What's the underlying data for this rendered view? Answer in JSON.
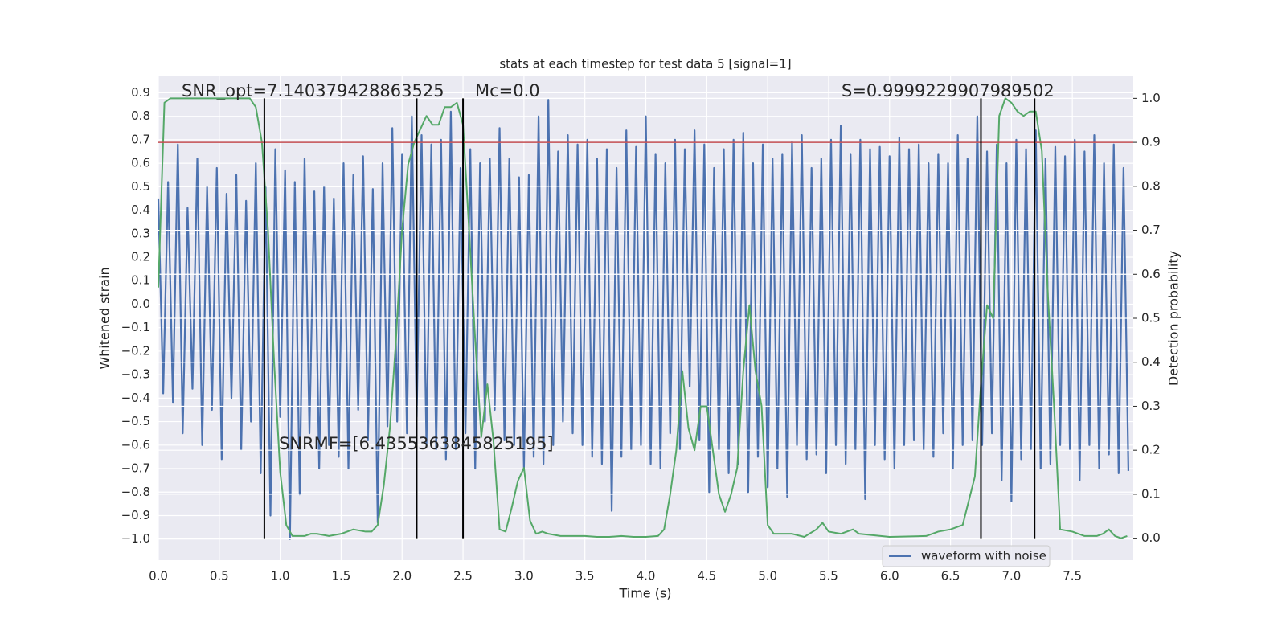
{
  "chart_data": {
    "type": "line",
    "title": "stats at each timestep for test data 5 [signal=1]",
    "x_label": "Time (s)",
    "y_label": "Whitened strain",
    "y2_label": "Detection probability",
    "annotations": [
      "SNR_opt=7.140379428863525",
      "Mc=0.0",
      "S=0.9999229907989502",
      "SNRMF=[6.4355363845825195]"
    ],
    "xlim": [
      0,
      8.0
    ],
    "ylim": [
      -1.09,
      0.97
    ],
    "y2lim": [
      -0.05,
      1.05
    ],
    "xticks": [
      {
        "value": 0,
        "label": "0.0"
      },
      {
        "value": 0.5,
        "label": "0.5"
      },
      {
        "value": 1,
        "label": "1.0"
      },
      {
        "value": 1.5,
        "label": "1.5"
      },
      {
        "value": 2,
        "label": "2.0"
      },
      {
        "value": 2.5,
        "label": "2.5"
      },
      {
        "value": 3,
        "label": "3.0"
      },
      {
        "value": 3.5,
        "label": "3.5"
      },
      {
        "value": 4,
        "label": "4.0"
      },
      {
        "value": 4.5,
        "label": "4.5"
      },
      {
        "value": 5,
        "label": "5.0"
      },
      {
        "value": 5.5,
        "label": "5.5"
      },
      {
        "value": 6,
        "label": "6.0"
      },
      {
        "value": 6.5,
        "label": "6.5"
      },
      {
        "value": 7,
        "label": "7.0"
      },
      {
        "value": 7.5,
        "label": "7.5"
      }
    ],
    "yticks": [
      {
        "value": -1,
        "label": "−1.0"
      },
      {
        "value": -0.9,
        "label": "−0.9"
      },
      {
        "value": -0.8,
        "label": "−0.8"
      },
      {
        "value": -0.7,
        "label": "−0.7"
      },
      {
        "value": -0.6,
        "label": "−0.6"
      },
      {
        "value": -0.5,
        "label": "−0.5"
      },
      {
        "value": -0.4,
        "label": "−0.4"
      },
      {
        "value": -0.3,
        "label": "−0.3"
      },
      {
        "value": -0.2,
        "label": "−0.2"
      },
      {
        "value": -0.1,
        "label": "−0.1"
      },
      {
        "value": 0,
        "label": "0.0"
      },
      {
        "value": 0.1,
        "label": "0.1"
      },
      {
        "value": 0.2,
        "label": "0.2"
      },
      {
        "value": 0.3,
        "label": "0.3"
      },
      {
        "value": 0.4,
        "label": "0.4"
      },
      {
        "value": 0.5,
        "label": "0.5"
      },
      {
        "value": 0.6,
        "label": "0.6"
      },
      {
        "value": 0.7,
        "label": "0.7"
      },
      {
        "value": 0.8,
        "label": "0.8"
      },
      {
        "value": 0.9,
        "label": "0.9"
      }
    ],
    "y2ticks": [
      {
        "value": 0,
        "label": "0.0"
      },
      {
        "value": 0.1,
        "label": "0.1"
      },
      {
        "value": 0.2,
        "label": "0.2"
      },
      {
        "value": 0.3,
        "label": "0.3"
      },
      {
        "value": 0.4,
        "label": "0.4"
      },
      {
        "value": 0.5,
        "label": "0.5"
      },
      {
        "value": 0.6,
        "label": "0.6"
      },
      {
        "value": 0.7,
        "label": "0.7"
      },
      {
        "value": 0.8,
        "label": "0.8"
      },
      {
        "value": 0.9,
        "label": "0.9"
      },
      {
        "value": 1,
        "label": "1.0"
      }
    ],
    "grid": true,
    "legend": "lower right",
    "series": [
      {
        "name": "waveform with noise",
        "color": "#4c72b0",
        "x": [
          0,
          0.04,
          0.08,
          0.12,
          0.16,
          0.2,
          0.24,
          0.28,
          0.32,
          0.36,
          0.4,
          0.44,
          0.48,
          0.52,
          0.56,
          0.6,
          0.64,
          0.68,
          0.72,
          0.76,
          0.8,
          0.84,
          0.88,
          0.92,
          0.96,
          1,
          1.04,
          1.08,
          1.12,
          1.16,
          1.2,
          1.24,
          1.28,
          1.32,
          1.36,
          1.4,
          1.44,
          1.48,
          1.52,
          1.56,
          1.6,
          1.64,
          1.68,
          1.72,
          1.76,
          1.8,
          1.84,
          1.88,
          1.92,
          1.96,
          2,
          2.04,
          2.08,
          2.12,
          2.16,
          2.2,
          2.24,
          2.28,
          2.32,
          2.36,
          2.4,
          2.44,
          2.48,
          2.52,
          2.56,
          2.6,
          2.64,
          2.68,
          2.72,
          2.76,
          2.8,
          2.84,
          2.88,
          2.92,
          2.96,
          3,
          3.04,
          3.08,
          3.12,
          3.16,
          3.2,
          3.24,
          3.28,
          3.32,
          3.36,
          3.4,
          3.44,
          3.48,
          3.52,
          3.56,
          3.6,
          3.64,
          3.68,
          3.72,
          3.76,
          3.8,
          3.84,
          3.88,
          3.92,
          3.96,
          4,
          4.04,
          4.08,
          4.12,
          4.16,
          4.2,
          4.24,
          4.28,
          4.32,
          4.36,
          4.4,
          4.44,
          4.48,
          4.52,
          4.56,
          4.6,
          4.64,
          4.68,
          4.72,
          4.76,
          4.8,
          4.84,
          4.88,
          4.92,
          4.96,
          5,
          5.04,
          5.08,
          5.12,
          5.16,
          5.2,
          5.24,
          5.28,
          5.32,
          5.36,
          5.4,
          5.44,
          5.48,
          5.52,
          5.56,
          5.6,
          5.64,
          5.68,
          5.72,
          5.76,
          5.8,
          5.84,
          5.88,
          5.92,
          5.96,
          6,
          6.04,
          6.08,
          6.12,
          6.16,
          6.2,
          6.24,
          6.28,
          6.32,
          6.36,
          6.4,
          6.44,
          6.48,
          6.52,
          6.56,
          6.6,
          6.64,
          6.68,
          6.72,
          6.76,
          6.8,
          6.84,
          6.88,
          6.92,
          6.96,
          7,
          7.04,
          7.08,
          7.12,
          7.16,
          7.2,
          7.24,
          7.28,
          7.32,
          7.36,
          7.4,
          7.44,
          7.48,
          7.52,
          7.56,
          7.6,
          7.64,
          7.68,
          7.72,
          7.76,
          7.8,
          7.84,
          7.88,
          7.92,
          7.96
        ],
        "values": [
          0.45,
          -0.38,
          0.52,
          -0.42,
          0.68,
          -0.55,
          0.41,
          -0.36,
          0.62,
          -0.6,
          0.5,
          -0.45,
          0.58,
          -0.66,
          0.47,
          -0.4,
          0.55,
          -0.62,
          0.44,
          -0.5,
          0.6,
          -0.72,
          0.5,
          -0.9,
          0.66,
          -0.48,
          0.57,
          -1.0,
          0.52,
          -0.81,
          0.62,
          -0.55,
          0.48,
          -0.7,
          0.5,
          -0.6,
          0.45,
          -0.65,
          0.6,
          -0.7,
          0.55,
          -0.45,
          0.63,
          -0.58,
          0.49,
          -0.93,
          0.6,
          -0.52,
          0.75,
          -0.5,
          0.64,
          -0.55,
          0.8,
          -0.48,
          0.72,
          -0.6,
          0.68,
          -0.62,
          0.7,
          -0.66,
          0.82,
          -0.62,
          0.58,
          -0.55,
          0.66,
          -0.7,
          0.6,
          -0.5,
          0.62,
          -0.45,
          0.75,
          -0.58,
          0.62,
          -0.6,
          0.54,
          -0.7,
          0.55,
          -0.65,
          0.8,
          -0.68,
          0.87,
          -0.6,
          0.65,
          -0.5,
          0.72,
          -0.55,
          0.68,
          -0.6,
          0.7,
          -0.65,
          0.62,
          -0.68,
          0.66,
          -0.88,
          0.58,
          -0.65,
          0.74,
          -0.62,
          0.67,
          -0.6,
          0.8,
          -0.68,
          0.64,
          -0.7,
          0.6,
          -0.55,
          0.7,
          -0.62,
          0.66,
          -0.35,
          0.74,
          -0.58,
          0.68,
          -0.8,
          0.58,
          -0.62,
          0.66,
          -0.72,
          0.7,
          -0.68,
          0.73,
          -0.8,
          0.6,
          -0.65,
          0.68,
          -0.78,
          0.62,
          -0.7,
          0.64,
          -0.82,
          0.69,
          -0.6,
          0.72,
          -0.66,
          0.58,
          -0.64,
          0.62,
          -0.72,
          0.7,
          -0.6,
          0.76,
          -0.68,
          0.64,
          -0.62,
          0.7,
          -0.83,
          0.66,
          -0.6,
          0.67,
          -0.66,
          0.63,
          -0.7,
          0.71,
          -0.6,
          0.66,
          -0.58,
          0.68,
          -0.62,
          0.6,
          -0.65,
          0.64,
          -0.55,
          0.6,
          -0.7,
          0.72,
          -0.6,
          0.62,
          -0.58,
          0.8,
          -0.6,
          0.65,
          -0.55,
          0.68,
          -0.75,
          0.6,
          -0.84,
          0.7,
          -0.66,
          0.66,
          -0.62,
          0.74,
          -0.7,
          0.62,
          -0.68,
          0.67,
          -0.6,
          0.63,
          -0.62,
          0.7,
          -0.75,
          0.65,
          -0.6,
          0.72,
          -0.7,
          0.6,
          -0.64,
          0.68,
          -0.72,
          0.58,
          -0.71
        ]
      },
      {
        "color": "#55a868",
        "axis": "y2",
        "x": [
          0,
          0.05,
          0.1,
          0.2,
          0.3,
          0.4,
          0.5,
          0.6,
          0.7,
          0.75,
          0.8,
          0.85,
          0.9,
          0.95,
          1,
          1.05,
          1.1,
          1.2,
          1.25,
          1.3,
          1.4,
          1.5,
          1.6,
          1.7,
          1.75,
          1.8,
          1.85,
          1.9,
          1.95,
          2,
          2.05,
          2.1,
          2.15,
          2.2,
          2.25,
          2.3,
          2.35,
          2.4,
          2.45,
          2.5,
          2.55,
          2.6,
          2.65,
          2.7,
          2.75,
          2.8,
          2.85,
          2.9,
          2.95,
          3,
          3.05,
          3.1,
          3.15,
          3.2,
          3.3,
          3.4,
          3.5,
          3.6,
          3.7,
          3.8,
          3.9,
          4,
          4.1,
          4.15,
          4.2,
          4.25,
          4.3,
          4.35,
          4.4,
          4.45,
          4.5,
          4.55,
          4.6,
          4.65,
          4.7,
          4.75,
          4.8,
          4.85,
          4.9,
          4.95,
          5,
          5.05,
          5.2,
          5.3,
          5.4,
          5.45,
          5.5,
          5.6,
          5.7,
          5.75,
          6,
          6.3,
          6.4,
          6.5,
          6.6,
          6.7,
          6.75,
          6.8,
          6.85,
          6.9,
          6.95,
          7,
          7.05,
          7.1,
          7.15,
          7.2,
          7.25,
          7.3,
          7.35,
          7.4,
          7.5,
          7.6,
          7.7,
          7.75,
          7.8,
          7.85,
          7.9,
          7.95
        ],
        "values": [
          0.57,
          0.99,
          1.0,
          1.0,
          1.0,
          1.0,
          1.0,
          1.0,
          1.0,
          1.0,
          0.98,
          0.9,
          0.7,
          0.4,
          0.15,
          0.03,
          0.005,
          0.005,
          0.01,
          0.01,
          0.005,
          0.01,
          0.02,
          0.015,
          0.015,
          0.03,
          0.12,
          0.25,
          0.45,
          0.7,
          0.85,
          0.9,
          0.93,
          0.96,
          0.94,
          0.94,
          0.98,
          0.98,
          0.99,
          0.94,
          0.7,
          0.45,
          0.23,
          0.35,
          0.22,
          0.02,
          0.015,
          0.07,
          0.13,
          0.16,
          0.04,
          0.01,
          0.015,
          0.01,
          0.005,
          0.005,
          0.005,
          0.003,
          0.003,
          0.005,
          0.003,
          0.003,
          0.005,
          0.02,
          0.1,
          0.2,
          0.38,
          0.25,
          0.2,
          0.3,
          0.3,
          0.2,
          0.1,
          0.06,
          0.1,
          0.16,
          0.38,
          0.53,
          0.38,
          0.3,
          0.03,
          0.01,
          0.01,
          0.003,
          0.02,
          0.035,
          0.015,
          0.01,
          0.02,
          0.01,
          0.003,
          0.005,
          0.015,
          0.02,
          0.03,
          0.14,
          0.35,
          0.53,
          0.5,
          0.96,
          1.0,
          0.99,
          0.97,
          0.96,
          0.97,
          0.97,
          0.88,
          0.55,
          0.3,
          0.02,
          0.015,
          0.005,
          0.005,
          0.01,
          0.02,
          0.005,
          0.0,
          0.005
        ]
      }
    ],
    "hline": {
      "value": 0.9,
      "axis": "y2",
      "color": "#c44e52"
    },
    "vlines": {
      "values": [
        0.87,
        2.12,
        2.5,
        6.75,
        7.19
      ],
      "range": [
        0,
        1
      ],
      "axis": "y2",
      "color": "#000000"
    }
  }
}
